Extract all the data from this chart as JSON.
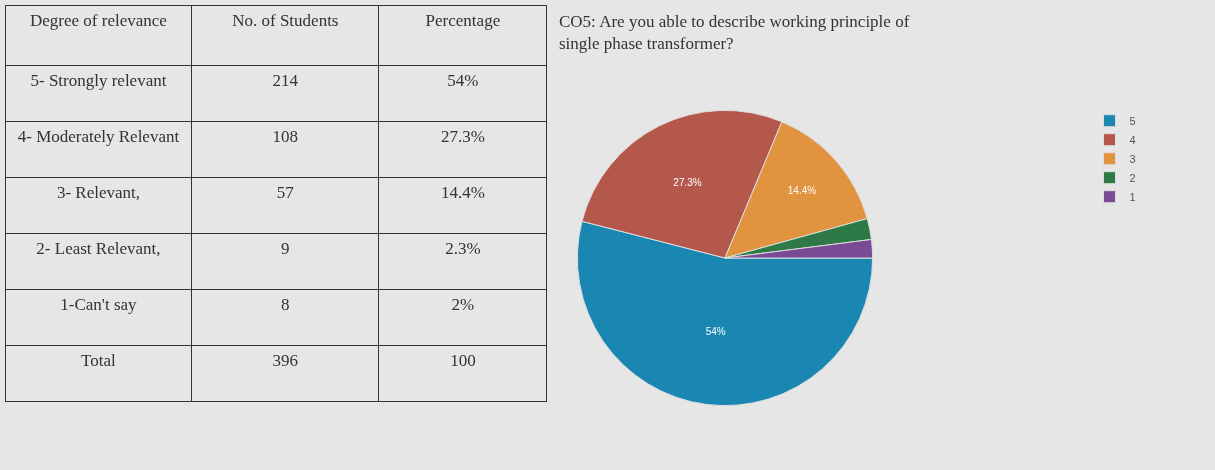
{
  "chart_data": [
    {
      "type": "other",
      "annotations": [
        "Degree of relevance",
        "No. of Students",
        "Percentage",
        "5- Strongly relevant",
        "214",
        "54%",
        "4- Moderately Relevant",
        "108",
        "27.3%",
        "3- Relevant,",
        "57",
        "14.4%",
        "2- Least Relevant,",
        "9",
        "2.3%",
        "1-Can't say",
        "8",
        "2%",
        "Total",
        "396",
        "100"
      ]
    },
    {
      "type": "pie",
      "title": "CO5: Are you able to describe working principle of single phase transformer?",
      "categories": [
        "5",
        "4",
        "3",
        "2",
        "1"
      ],
      "values": [
        54,
        27.3,
        14.4,
        2.3,
        2
      ],
      "colors": [
        "#1a87b3",
        "#b4584c",
        "#e29340",
        "#2d7a47",
        "#7a4b95"
      ],
      "value_labels": [
        "54%",
        "27.3%",
        "14.4%",
        null,
        null
      ],
      "legend": "top right"
    }
  ]
}
